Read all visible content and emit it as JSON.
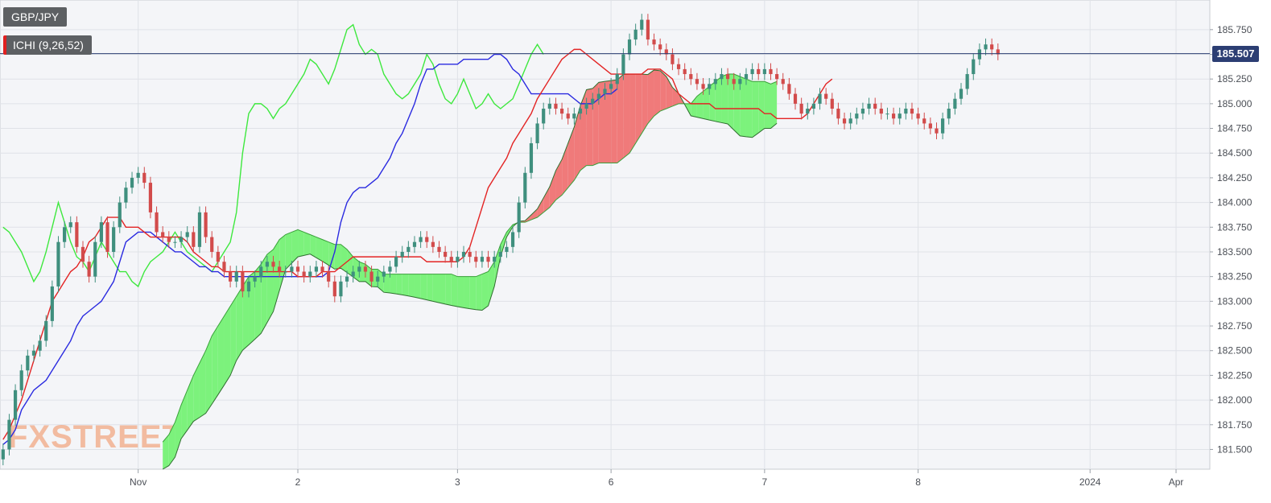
{
  "chart_data": {
    "type": "candlestick",
    "symbol": "GBP/JPY",
    "indicator": "ICHI (9,26,52)",
    "current_price": 185.507,
    "current_price_label": "185.507",
    "watermark": "FXSTREET",
    "ylim": [
      181.3,
      186.05
    ],
    "y_ticks": [
      181.5,
      181.75,
      182.0,
      182.25,
      182.5,
      182.75,
      183.0,
      183.25,
      183.5,
      183.75,
      184.0,
      184.25,
      184.5,
      184.75,
      185.0,
      185.25,
      185.5,
      185.75
    ],
    "y_tick_labels": [
      "181.500",
      "181.750",
      "182.000",
      "182.250",
      "182.500",
      "182.750",
      "183.000",
      "183.250",
      "183.500",
      "183.750",
      "184.000",
      "184.250",
      "184.500",
      "184.750",
      "185.000",
      "185.250",
      "185.500",
      "185.750"
    ],
    "x_axis_labels": [
      {
        "label": "Nov",
        "bar": 22
      },
      {
        "label": "2",
        "bar": 48
      },
      {
        "label": "3",
        "bar": 74
      },
      {
        "label": "6",
        "bar": 99
      },
      {
        "label": "7",
        "bar": 124
      },
      {
        "label": "8",
        "bar": 149
      },
      {
        "label": "2024",
        "bar": 177
      },
      {
        "label": "Apr",
        "bar": 191
      }
    ],
    "x_gridlines_bar": [
      22,
      48,
      74,
      99,
      124,
      149,
      177,
      191
    ],
    "bars_total": 197,
    "candles_close": [
      181.5,
      181.8,
      182.1,
      182.3,
      182.45,
      182.5,
      182.6,
      182.8,
      183.15,
      183.6,
      183.75,
      183.8,
      183.55,
      183.4,
      183.25,
      183.6,
      183.8,
      183.5,
      183.75,
      184.0,
      184.15,
      184.25,
      184.3,
      184.2,
      183.9,
      183.7,
      183.65,
      183.6,
      183.6,
      183.65,
      183.7,
      183.55,
      183.9,
      183.65,
      183.5,
      183.4,
      183.3,
      183.2,
      183.3,
      183.1,
      183.2,
      183.25,
      183.35,
      183.4,
      183.35,
      183.3,
      183.3,
      183.35,
      183.3,
      183.25,
      183.3,
      183.35,
      183.3,
      183.2,
      183.05,
      183.2,
      183.25,
      183.3,
      183.35,
      183.3,
      183.2,
      183.25,
      183.3,
      183.35,
      183.45,
      183.5,
      183.55,
      183.6,
      183.65,
      183.6,
      183.55,
      183.5,
      183.45,
      183.4,
      183.45,
      183.5,
      183.45,
      183.4,
      183.45,
      183.4,
      183.45,
      183.5,
      183.55,
      183.7,
      184.0,
      184.3,
      184.6,
      184.8,
      184.95,
      185.0,
      184.95,
      184.9,
      184.85,
      184.9,
      184.95,
      185.0,
      185.05,
      185.1,
      185.15,
      185.2,
      185.3,
      185.5,
      185.65,
      185.75,
      185.85,
      185.65,
      185.6,
      185.55,
      185.5,
      185.4,
      185.35,
      185.3,
      185.25,
      185.2,
      185.15,
      185.2,
      185.25,
      185.3,
      185.25,
      185.2,
      185.25,
      185.3,
      185.35,
      185.3,
      185.35,
      185.3,
      185.25,
      185.2,
      185.1,
      185.0,
      184.9,
      184.95,
      185.0,
      185.1,
      185.05,
      184.95,
      184.85,
      184.8,
      184.85,
      184.9,
      184.95,
      185.0,
      184.95,
      184.9,
      184.9,
      184.85,
      184.9,
      184.95,
      184.9,
      184.85,
      184.8,
      184.75,
      184.7,
      184.85,
      184.95,
      185.05,
      185.15,
      185.3,
      185.45,
      185.55,
      185.6,
      185.55,
      185.5
    ],
    "candles_high_pad": 0.06,
    "candles_low_pad": 0.06,
    "tenkan_sen": [
      181.6,
      181.7,
      181.85,
      182.0,
      182.2,
      182.4,
      182.6,
      182.8,
      183.0,
      183.1,
      183.2,
      183.3,
      183.35,
      183.45,
      183.6,
      183.65,
      183.75,
      183.85,
      183.85,
      183.85,
      183.75,
      183.75,
      183.75,
      183.7,
      183.65,
      183.65,
      183.65,
      183.65,
      183.65,
      183.65,
      183.6,
      183.5,
      183.45,
      183.4,
      183.35,
      183.35,
      183.3,
      183.3,
      183.3,
      183.3,
      183.3,
      183.3,
      183.3,
      183.3,
      183.3,
      183.3,
      183.3,
      183.3,
      183.25,
      183.25,
      183.25,
      183.25,
      183.3,
      183.3,
      183.3,
      183.35,
      183.4,
      183.45,
      183.45,
      183.45,
      183.45,
      183.45,
      183.45,
      183.45,
      183.45,
      183.45,
      183.45,
      183.45,
      183.45,
      183.4,
      183.4,
      183.4,
      183.4,
      183.4,
      183.4,
      183.45,
      183.55,
      183.75,
      183.95,
      184.15,
      184.25,
      184.35,
      184.45,
      184.6,
      184.7,
      184.8,
      184.9,
      185.05,
      185.15,
      185.25,
      185.35,
      185.45,
      185.5,
      185.55,
      185.55,
      185.5,
      185.45,
      185.4,
      185.35,
      185.3,
      185.3,
      185.3,
      185.3,
      185.3,
      185.3,
      185.35,
      185.35,
      185.35,
      185.3,
      185.25,
      185.1,
      185.05,
      185.0,
      185.0,
      185.0,
      185.0,
      184.95,
      184.95,
      184.95,
      184.95,
      184.95,
      184.95,
      184.95,
      184.95,
      184.9,
      184.9,
      184.85,
      184.85,
      184.85,
      184.85,
      184.85,
      184.9,
      185.0,
      185.1,
      185.2,
      185.25
    ],
    "kijun_sen": [
      181.55,
      181.6,
      181.7,
      181.9,
      182.0,
      182.1,
      182.15,
      182.2,
      182.3,
      182.4,
      182.5,
      182.6,
      182.75,
      182.85,
      182.9,
      182.95,
      183.0,
      183.1,
      183.2,
      183.4,
      183.6,
      183.65,
      183.7,
      183.7,
      183.7,
      183.65,
      183.6,
      183.55,
      183.5,
      183.5,
      183.45,
      183.4,
      183.35,
      183.35,
      183.3,
      183.3,
      183.25,
      183.25,
      183.25,
      183.25,
      183.25,
      183.25,
      183.25,
      183.25,
      183.25,
      183.25,
      183.25,
      183.25,
      183.25,
      183.25,
      183.25,
      183.25,
      183.25,
      183.3,
      183.5,
      183.8,
      184.0,
      184.1,
      184.15,
      184.15,
      184.2,
      184.25,
      184.35,
      184.45,
      184.6,
      184.7,
      184.85,
      185.0,
      185.2,
      185.35,
      185.35,
      185.4,
      185.4,
      185.4,
      185.4,
      185.45,
      185.45,
      185.45,
      185.45,
      185.45,
      185.5,
      185.5,
      185.45,
      185.35,
      185.3,
      185.2,
      185.1,
      185.1,
      185.1,
      185.1,
      185.1,
      185.1,
      185.1,
      185.05,
      185.0,
      185.0,
      185.0,
      185.05,
      185.1,
      185.1,
      185.15
    ],
    "chikou_span": [
      183.75,
      183.7,
      183.6,
      183.5,
      183.35,
      183.2,
      183.3,
      183.5,
      183.75,
      184.0,
      183.8,
      183.6,
      183.45,
      183.4,
      183.3,
      183.45,
      183.6,
      183.5,
      183.4,
      183.3,
      183.3,
      183.2,
      183.15,
      183.3,
      183.4,
      183.45,
      183.5,
      183.6,
      183.7,
      183.6,
      183.5,
      183.45,
      183.4,
      183.35,
      183.3,
      183.4,
      183.5,
      183.6,
      183.9,
      184.5,
      184.9,
      185.0,
      185.0,
      184.95,
      184.85,
      184.95,
      185.0,
      185.1,
      185.2,
      185.3,
      185.45,
      185.4,
      185.3,
      185.2,
      185.35,
      185.55,
      185.75,
      185.8,
      185.6,
      185.5,
      185.55,
      185.5,
      185.3,
      185.2,
      185.1,
      185.05,
      185.1,
      185.2,
      185.3,
      185.5,
      185.4,
      185.2,
      185.05,
      185.0,
      185.1,
      185.25,
      185.1,
      184.95,
      185.0,
      185.1,
      185.0,
      184.95,
      185.0,
      185.05,
      185.2,
      185.35,
      185.5,
      185.6,
      185.5
    ]
  }
}
